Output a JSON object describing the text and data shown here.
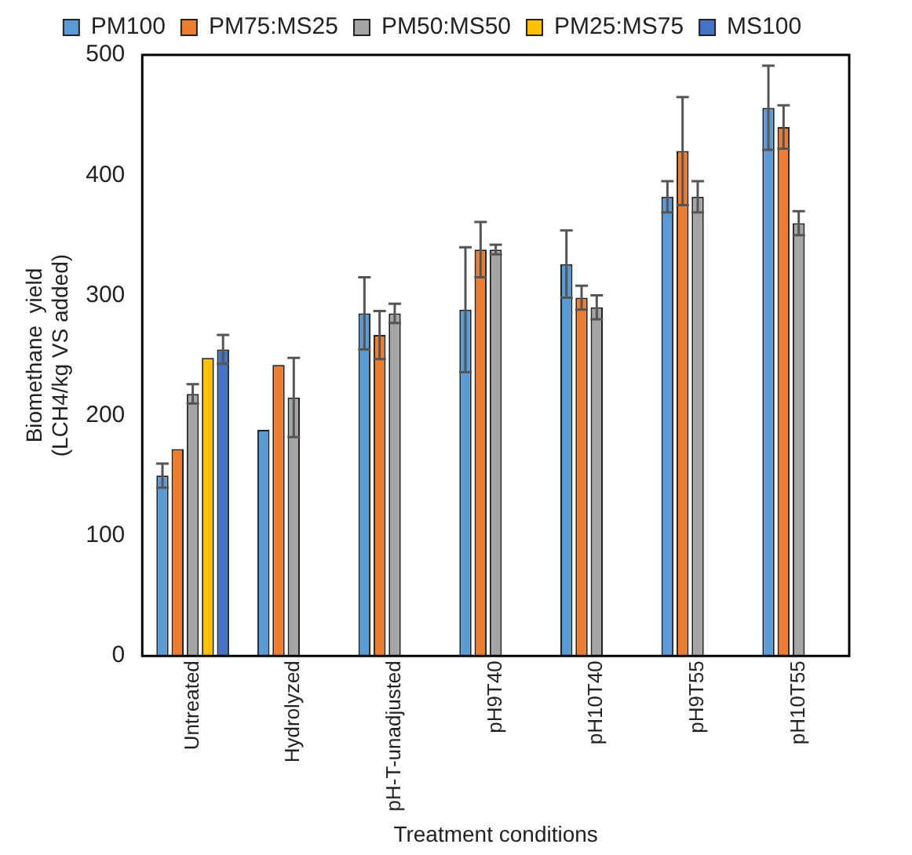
{
  "chart_data": {
    "type": "bar",
    "xlabel": "Treatment conditions",
    "ylabel": "Biomethane  yield\n(LCH4/kg VS added)",
    "categories": [
      "Untreated",
      "Hydrolyzed",
      "pH-T-unadjusted",
      "pH9T40",
      "pH10T40",
      "pH9T55",
      "pH10T55"
    ],
    "series": [
      {
        "name": "PM100",
        "color": "#5b9bd5",
        "values": [
          150,
          188,
          285,
          288,
          326,
          382,
          456
        ],
        "errors": [
          10,
          null,
          30,
          52,
          28,
          13,
          35
        ]
      },
      {
        "name": "PM75:MS25",
        "color": "#ed7d31",
        "values": [
          172,
          242,
          267,
          338,
          298,
          420,
          440
        ],
        "errors": [
          null,
          null,
          20,
          23,
          10,
          45,
          18
        ]
      },
      {
        "name": "PM50:MS50",
        "color": "#a5a5a5",
        "values": [
          218,
          215,
          285,
          338,
          290,
          382,
          360
        ],
        "errors": [
          8,
          33,
          8,
          4,
          10,
          13,
          10
        ]
      },
      {
        "name": "PM25:MS75",
        "color": "#ffc000",
        "values": [
          248,
          null,
          null,
          null,
          null,
          null,
          null
        ],
        "errors": [
          null,
          null,
          null,
          null,
          null,
          null,
          null
        ]
      },
      {
        "name": "MS100",
        "color": "#4472c4",
        "values": [
          255,
          null,
          null,
          null,
          null,
          null,
          null
        ],
        "errors": [
          12,
          null,
          null,
          null,
          null,
          null,
          null
        ]
      }
    ],
    "ylim": [
      0,
      500
    ],
    "yticks": [
      0,
      100,
      200,
      300,
      400,
      500
    ],
    "grid": false,
    "legend": "top"
  }
}
